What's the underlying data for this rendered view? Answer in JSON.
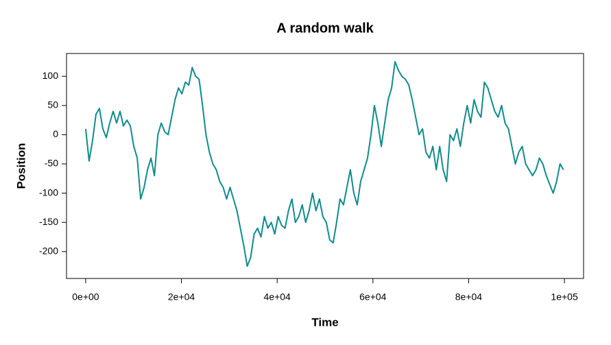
{
  "chart_data": {
    "type": "line",
    "title": "A random walk",
    "x_label": "Time",
    "y_label": "Position",
    "x": [
      0,
      718,
      1436,
      2154,
      2872,
      3590,
      4308,
      5026,
      5744,
      6462,
      7180,
      7898,
      8616,
      9334,
      10052,
      10770,
      11488,
      12206,
      12924,
      13642,
      14360,
      15078,
      15796,
      16514,
      17232,
      17950,
      18668,
      19386,
      20104,
      20822,
      21540,
      22258,
      22976,
      23694,
      24412,
      25130,
      25848,
      26566,
      27284,
      28002,
      28720,
      29438,
      30156,
      30874,
      31592,
      32310,
      33028,
      33746,
      34464,
      35182,
      35900,
      36618,
      37336,
      38054,
      38772,
      39490,
      40208,
      40926,
      41644,
      42362,
      43080,
      43798,
      44516,
      45234,
      45952,
      46670,
      47388,
      48106,
      48824,
      49542,
      50260,
      50978,
      51696,
      52414,
      53132,
      53850,
      54568,
      55286,
      56004,
      56722,
      57440,
      58158,
      58876,
      59594,
      60312,
      61030,
      61748,
      62466,
      63184,
      63902,
      64620,
      65338,
      66056,
      66774,
      67492,
      68210,
      68928,
      69646,
      70364,
      71082,
      71800,
      72518,
      73236,
      73954,
      74672,
      75390,
      76108,
      76826,
      77544,
      78262,
      78980,
      79698,
      80416,
      81134,
      81852,
      82570,
      83288,
      84006,
      84724,
      85442,
      86160,
      86878,
      87596,
      88314,
      89032,
      89750,
      90468,
      91186,
      91904,
      92622,
      93340,
      94058,
      94776,
      95494,
      96212,
      96930,
      97648,
      98366,
      99084,
      99802
    ],
    "series": [
      {
        "name": "Position",
        "color": "#0e8b8b",
        "values": [
          10,
          -45,
          -10,
          35,
          45,
          10,
          -5,
          20,
          40,
          20,
          40,
          15,
          25,
          15,
          -20,
          -40,
          -110,
          -90,
          -60,
          -40,
          -70,
          0,
          20,
          5,
          0,
          30,
          60,
          80,
          70,
          90,
          85,
          115,
          100,
          95,
          50,
          0,
          -30,
          -50,
          -60,
          -80,
          -90,
          -110,
          -90,
          -110,
          -130,
          -160,
          -190,
          -225,
          -210,
          -170,
          -160,
          -175,
          -140,
          -160,
          -150,
          -170,
          -140,
          -155,
          -160,
          -130,
          -110,
          -150,
          -140,
          -120,
          -150,
          -130,
          -100,
          -130,
          -110,
          -140,
          -150,
          -180,
          -185,
          -150,
          -110,
          -120,
          -90,
          -60,
          -100,
          -120,
          -80,
          -60,
          -40,
          0,
          50,
          20,
          -20,
          20,
          60,
          80,
          125,
          110,
          100,
          95,
          85,
          60,
          30,
          0,
          10,
          -30,
          -40,
          -20,
          -60,
          -20,
          -60,
          -80,
          0,
          -10,
          10,
          -20,
          20,
          50,
          20,
          60,
          40,
          30,
          90,
          80,
          60,
          40,
          30,
          50,
          20,
          10,
          -20,
          -50,
          -30,
          -20,
          -50,
          -60,
          -70,
          -60,
          -40,
          -50,
          -70,
          -85,
          -100,
          -80,
          -50,
          -60
        ]
      }
    ],
    "xlim": [
      -4000,
      104000
    ],
    "ylim": [
      -246,
      139
    ],
    "xticks": [
      {
        "value": 0,
        "label": "0e+00"
      },
      {
        "value": 20000,
        "label": "2e+04"
      },
      {
        "value": 40000,
        "label": "4e+04"
      },
      {
        "value": 60000,
        "label": "6e+04"
      },
      {
        "value": 80000,
        "label": "8e+04"
      },
      {
        "value": 100000,
        "label": "1e+05"
      }
    ],
    "yticks": [
      -200,
      -150,
      -100,
      -50,
      0,
      50,
      100
    ]
  }
}
